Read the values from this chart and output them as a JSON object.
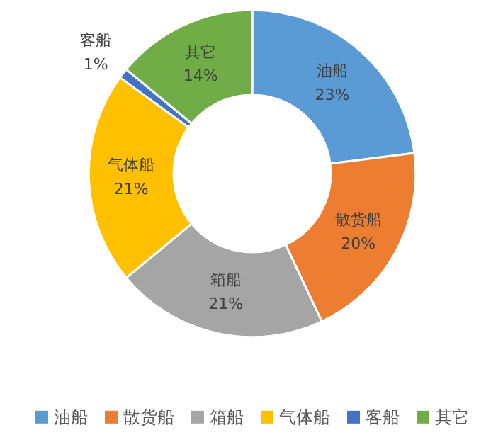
{
  "chart_data": {
    "type": "donut",
    "categories": [
      "油船",
      "散货船",
      "箱船",
      "气体船",
      "客船",
      "其它"
    ],
    "values": [
      23,
      20,
      21,
      21,
      1,
      14
    ],
    "colors": [
      "#5b9bd5",
      "#ed7d31",
      "#a5a5a5",
      "#ffc000",
      "#4472c4",
      "#70ad47"
    ],
    "value_labels": [
      "23%",
      "20%",
      "21%",
      "21%",
      "1%",
      "14%"
    ],
    "legend": "bottom"
  }
}
